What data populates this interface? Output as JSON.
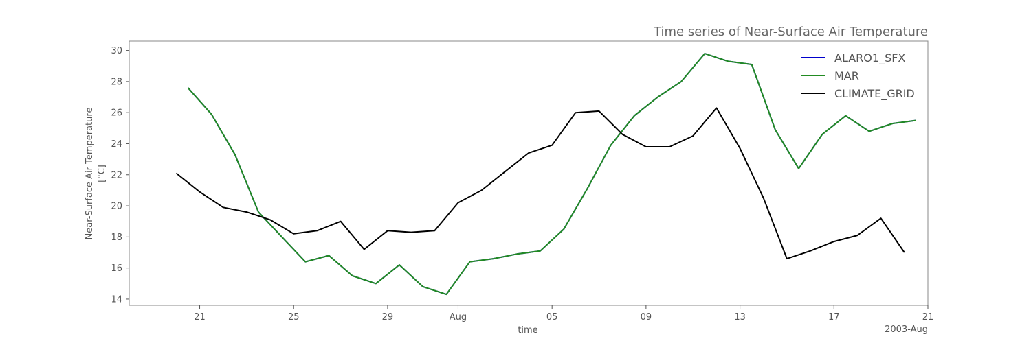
{
  "chart_data": {
    "type": "line",
    "title": "Time series of Near-Surface Air Temperature",
    "xlabel": "time",
    "ylabel": "Near-Surface Air Temperature",
    "yunit": "[°C]",
    "x_start": "2003-07-20",
    "x_end": "2003-08-20",
    "xlim": [
      "2003-07-18",
      "2003-08-21"
    ],
    "ylim": [
      13.6,
      30.6
    ],
    "x_ticks": [
      "2003-07-21",
      "2003-07-25",
      "2003-07-29",
      "2003-08-01",
      "2003-08-05",
      "2003-08-09",
      "2003-08-13",
      "2003-08-17",
      "2003-08-21"
    ],
    "x_tick_labels": [
      "21",
      "25",
      "29",
      "Aug",
      "05",
      "09",
      "13",
      "17",
      "21"
    ],
    "x_offset_label": "2003-Aug",
    "y_ticks": [
      14,
      16,
      18,
      20,
      22,
      24,
      26,
      28,
      30
    ],
    "y_tick_labels": [
      "14",
      "16",
      "18",
      "20",
      "22",
      "24",
      "26",
      "28",
      "30"
    ],
    "grid": false,
    "legend_position": "top-right",
    "series": [
      {
        "name": "ALARO1_SFX",
        "color": "#0000cc",
        "x": [
          "2003-07-20T12:00",
          "2003-07-21T12:00",
          "2003-07-22T12:00",
          "2003-07-23T12:00",
          "2003-07-24T12:00",
          "2003-07-25T12:00",
          "2003-07-26T12:00",
          "2003-07-27T12:00",
          "2003-07-28T12:00",
          "2003-07-29T12:00",
          "2003-07-30T12:00",
          "2003-07-31T12:00",
          "2003-08-01T12:00",
          "2003-08-02T12:00",
          "2003-08-03T12:00",
          "2003-08-04T12:00",
          "2003-08-05T12:00",
          "2003-08-06T12:00",
          "2003-08-07T12:00",
          "2003-08-08T12:00",
          "2003-08-09T12:00",
          "2003-08-10T12:00",
          "2003-08-11T12:00",
          "2003-08-12T12:00",
          "2003-08-13T12:00",
          "2003-08-14T12:00",
          "2003-08-15T12:00",
          "2003-08-16T12:00",
          "2003-08-17T12:00",
          "2003-08-18T12:00",
          "2003-08-19T12:00",
          "2003-08-20T12:00"
        ],
        "values": [
          27.6,
          25.9,
          23.3,
          19.6,
          18.0,
          16.4,
          16.8,
          15.5,
          15.0,
          16.2,
          14.8,
          14.3,
          16.4,
          16.6,
          16.9,
          17.1,
          18.5,
          21.1,
          23.9,
          25.8,
          27.0,
          28.0,
          29.8,
          29.3,
          29.1,
          24.9,
          22.4,
          24.6,
          25.8,
          24.8,
          25.3,
          25.5
        ]
      },
      {
        "name": "MAR",
        "color": "#228b22",
        "x": [
          "2003-07-20T12:00",
          "2003-07-21T12:00",
          "2003-07-22T12:00",
          "2003-07-23T12:00",
          "2003-07-24T12:00",
          "2003-07-25T12:00",
          "2003-07-26T12:00",
          "2003-07-27T12:00",
          "2003-07-28T12:00",
          "2003-07-29T12:00",
          "2003-07-30T12:00",
          "2003-07-31T12:00",
          "2003-08-01T12:00",
          "2003-08-02T12:00",
          "2003-08-03T12:00",
          "2003-08-04T12:00",
          "2003-08-05T12:00",
          "2003-08-06T12:00",
          "2003-08-07T12:00",
          "2003-08-08T12:00",
          "2003-08-09T12:00",
          "2003-08-10T12:00",
          "2003-08-11T12:00",
          "2003-08-12T12:00",
          "2003-08-13T12:00",
          "2003-08-14T12:00",
          "2003-08-15T12:00",
          "2003-08-16T12:00",
          "2003-08-17T12:00",
          "2003-08-18T12:00",
          "2003-08-19T12:00",
          "2003-08-20T12:00"
        ],
        "values": [
          27.6,
          25.9,
          23.3,
          19.6,
          18.0,
          16.4,
          16.8,
          15.5,
          15.0,
          16.2,
          14.8,
          14.3,
          16.4,
          16.6,
          16.9,
          17.1,
          18.5,
          21.1,
          23.9,
          25.8,
          27.0,
          28.0,
          29.8,
          29.3,
          29.1,
          24.9,
          22.4,
          24.6,
          25.8,
          24.8,
          25.3,
          25.5
        ]
      },
      {
        "name": "CLIMATE_GRID",
        "color": "#000000",
        "x": [
          "2003-07-20",
          "2003-07-21",
          "2003-07-22",
          "2003-07-23",
          "2003-07-24",
          "2003-07-25",
          "2003-07-26",
          "2003-07-27",
          "2003-07-28",
          "2003-07-29",
          "2003-07-30",
          "2003-07-31",
          "2003-08-01",
          "2003-08-02",
          "2003-08-03",
          "2003-08-04",
          "2003-08-05",
          "2003-08-06",
          "2003-08-07",
          "2003-08-08",
          "2003-08-09",
          "2003-08-10",
          "2003-08-11",
          "2003-08-12",
          "2003-08-13",
          "2003-08-14",
          "2003-08-15",
          "2003-08-16",
          "2003-08-17",
          "2003-08-18",
          "2003-08-19",
          "2003-08-20"
        ],
        "values": [
          22.1,
          20.9,
          19.9,
          19.6,
          19.1,
          18.2,
          18.4,
          19.0,
          17.2,
          18.4,
          18.3,
          18.4,
          20.2,
          21.0,
          22.2,
          23.4,
          23.9,
          26.0,
          26.1,
          24.6,
          23.8,
          23.8,
          24.5,
          26.3,
          23.7,
          20.5,
          16.6,
          17.1,
          17.7,
          18.1,
          19.2,
          17.0
        ]
      }
    ]
  }
}
